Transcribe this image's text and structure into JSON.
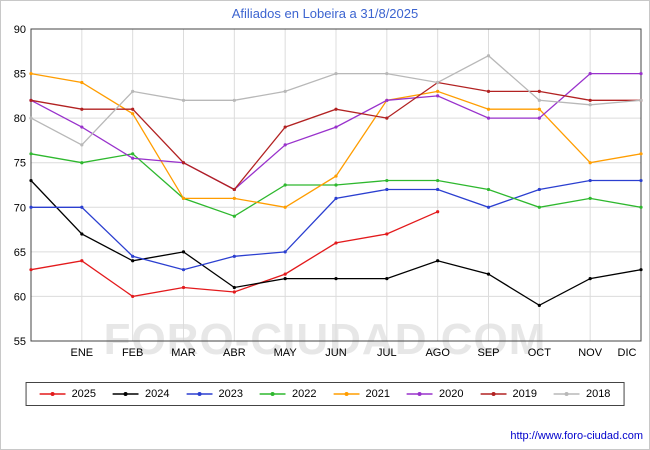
{
  "title": "Afiliados en Lobeira a 31/8/2025",
  "watermark": "FORO-CIUDAD.COM",
  "footer": {
    "url": "http://www.foro-ciudad.com"
  },
  "colors": {
    "title": "#3c64d0",
    "link": "#0000cc",
    "watermark": "#d4d4d4",
    "grid": "#dcdcdc",
    "border": "#444444"
  },
  "chart_data": {
    "type": "line",
    "title": "Afiliados en Lobeira a 31/8/2025",
    "x_labels": [
      "",
      "ENE",
      "FEB",
      "MAR",
      "ABR",
      "MAY",
      "JUN",
      "JUL",
      "AGO",
      "SEP",
      "OCT",
      "NOV",
      "DIC"
    ],
    "ylim": [
      55,
      90
    ],
    "ytick_step": 5,
    "grid": true,
    "legend_position": "bottom",
    "series": [
      {
        "name": "2025",
        "color": "#e31a1c",
        "values": [
          63,
          64,
          60,
          61,
          60.5,
          62.5,
          66,
          67,
          69.5
        ]
      },
      {
        "name": "2024",
        "color": "#000000",
        "values": [
          73,
          67,
          64,
          65,
          61,
          62,
          62,
          62,
          64,
          62.5,
          59,
          62,
          63
        ]
      },
      {
        "name": "2023",
        "color": "#2b3fd0",
        "values": [
          70,
          70,
          64.5,
          63,
          64.5,
          65,
          71,
          72,
          72,
          70,
          72,
          73,
          73
        ]
      },
      {
        "name": "2022",
        "color": "#2eb82e",
        "values": [
          76,
          75,
          76,
          71,
          69,
          72.5,
          72.5,
          73,
          73,
          72,
          70,
          71,
          70
        ]
      },
      {
        "name": "2021",
        "color": "#ff9d00",
        "values": [
          85,
          84,
          80.5,
          71,
          71,
          70,
          73.5,
          82,
          83,
          81,
          81,
          75,
          76
        ]
      },
      {
        "name": "2020",
        "color": "#9932cc",
        "values": [
          82,
          79,
          75.5,
          75,
          72,
          77,
          79,
          82,
          82.5,
          80,
          80,
          85,
          85
        ]
      },
      {
        "name": "2019",
        "color": "#b22222",
        "values": [
          82,
          81,
          81,
          75,
          72,
          79,
          81,
          80,
          84,
          83,
          83,
          82,
          82
        ]
      },
      {
        "name": "2018",
        "color": "#b8b8b8",
        "values": [
          80,
          77,
          83,
          82,
          82,
          83,
          85,
          85,
          84,
          87,
          82,
          81.5,
          82
        ]
      }
    ]
  }
}
